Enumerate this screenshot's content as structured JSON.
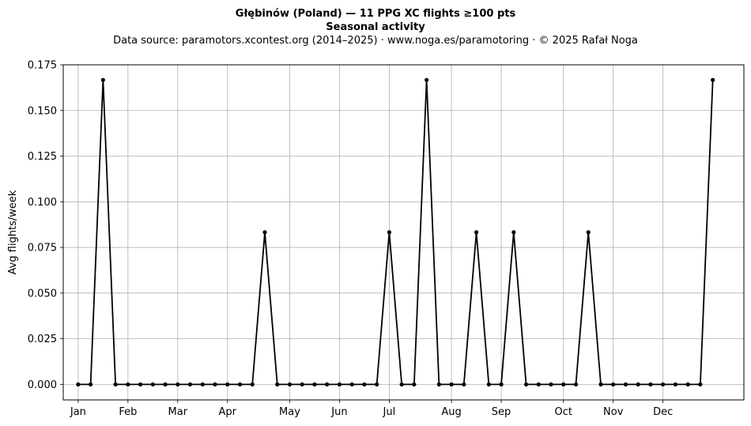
{
  "chart_data": {
    "type": "line",
    "title": "Głębinów (Poland)  —  11 PPG XC flights ≥100 pts",
    "title_line2": "Seasonal activity",
    "subtitle": "Data source: paramotors.xcontest.org (2014–2025)  ·  www.noga.es/paramotoring  ·  © 2025 Rafał Noga",
    "xlabel": "",
    "ylabel": "Avg flights/week",
    "x_unit": "week of year",
    "xlim": [
      -1.2,
      53.5
    ],
    "ylim": [
      -0.0085,
      0.175
    ],
    "yticks": [
      0.0,
      0.025,
      0.05,
      0.075,
      0.1,
      0.125,
      0.15,
      0.175
    ],
    "ytick_labels": [
      "0.000",
      "0.025",
      "0.050",
      "0.075",
      "0.100",
      "0.125",
      "0.150",
      "0.175"
    ],
    "month_ticks": [
      {
        "label": "Jan",
        "week": 0
      },
      {
        "label": "Feb",
        "week": 4
      },
      {
        "label": "Mar",
        "week": 8
      },
      {
        "label": "Apr",
        "week": 12
      },
      {
        "label": "May",
        "week": 17
      },
      {
        "label": "Jun",
        "week": 21
      },
      {
        "label": "Jul",
        "week": 25
      },
      {
        "label": "Aug",
        "week": 30
      },
      {
        "label": "Sep",
        "week": 34
      },
      {
        "label": "Oct",
        "week": 39
      },
      {
        "label": "Nov",
        "week": 43
      },
      {
        "label": "Dec",
        "week": 47
      }
    ],
    "grid": true,
    "legend": "none",
    "line_color": "#000000",
    "series": [
      {
        "x": [
          0,
          1,
          2,
          3,
          4,
          5,
          6,
          7,
          8,
          9,
          10,
          11,
          12,
          13,
          14,
          15,
          16,
          17,
          18,
          19,
          20,
          21,
          22,
          23,
          24,
          25,
          26,
          27,
          28,
          29,
          30,
          31,
          32,
          33,
          34,
          35,
          36,
          37,
          38,
          39,
          40,
          41,
          42,
          43,
          44,
          45,
          46,
          47,
          48,
          49,
          50,
          51
        ],
        "values": [
          0,
          0,
          0.1667,
          0,
          0,
          0,
          0,
          0,
          0,
          0,
          0,
          0,
          0,
          0,
          0,
          0.0833,
          0,
          0,
          0,
          0,
          0,
          0,
          0,
          0,
          0,
          0.0833,
          0,
          0,
          0.1667,
          0,
          0,
          0,
          0.0833,
          0,
          0,
          0.0833,
          0,
          0,
          0,
          0,
          0,
          0.0833,
          0,
          0,
          0,
          0,
          0,
          0,
          0,
          0,
          0,
          0.1667
        ]
      }
    ]
  }
}
